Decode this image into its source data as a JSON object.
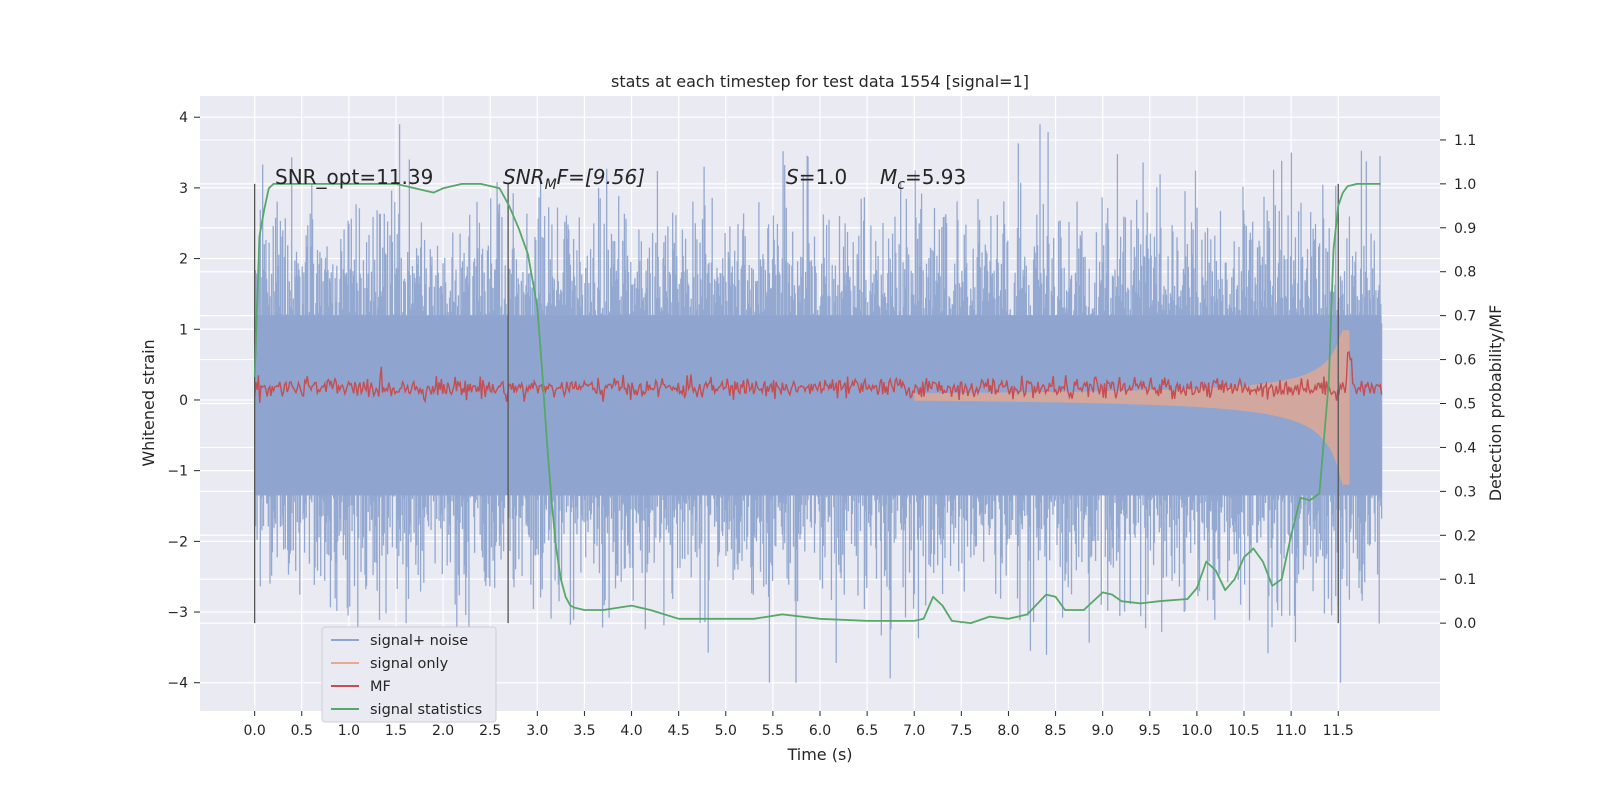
{
  "chart_data": {
    "type": "line",
    "title": "stats at each timestep for test data 1554 [signal=1]",
    "xlabel": "Time (s)",
    "ylabel": "Whitened strain",
    "ylabel_right": "Detection probability/MF",
    "xlim": [
      -0.58,
      12.58
    ],
    "ylim": [
      -4.4,
      4.3
    ],
    "ylim_right": [
      -0.2,
      1.2
    ],
    "x_ticks": [
      "0.0",
      "0.5",
      "1.0",
      "1.5",
      "2.0",
      "2.5",
      "3.0",
      "3.5",
      "4.0",
      "4.5",
      "5.0",
      "5.5",
      "6.0",
      "6.5",
      "7.0",
      "7.5",
      "8.0",
      "8.5",
      "9.0",
      "9.5",
      "10.0",
      "10.5",
      "11.0",
      "11.5"
    ],
    "y_ticks": [
      "−4",
      "−3",
      "−2",
      "−1",
      "0",
      "1",
      "2",
      "3",
      "4"
    ],
    "y_right_ticks": [
      "0.0",
      "0.1",
      "0.2",
      "0.3",
      "0.4",
      "0.5",
      "0.6",
      "0.7",
      "0.8",
      "0.9",
      "1.0",
      "1.1"
    ],
    "grid": true,
    "legend_position": "lower-left",
    "annotations": {
      "snr_opt": "SNR_opt=11.39",
      "snr_mf_prefix": "SNR",
      "snr_mf_sub": "M",
      "snr_mf_suffix": "F=[9.56]",
      "s_italic": "S",
      "s_value": "=1.0",
      "mc_italic": "M",
      "mc_sub": "c",
      "mc_value": "=5.93"
    },
    "vertical_lines_x": [
      0.0,
      2.69,
      11.5
    ],
    "series": [
      {
        "name": "signal+ noise",
        "color": "#8fa5cf"
      },
      {
        "name": "signal only",
        "color": "#e8a98d"
      },
      {
        "name": "MF",
        "color": "#c44e52"
      },
      {
        "name": "signal statistics",
        "color": "#55a868",
        "x": [
          0.0,
          0.05,
          0.1,
          0.15,
          0.2,
          0.3,
          0.5,
          1.0,
          1.5,
          1.7,
          1.9,
          2.0,
          2.2,
          2.4,
          2.6,
          2.7,
          2.8,
          2.9,
          3.0,
          3.05,
          3.1,
          3.15,
          3.2,
          3.25,
          3.3,
          3.35,
          3.4,
          3.5,
          3.7,
          4.0,
          4.2,
          4.5,
          5.0,
          5.3,
          5.6,
          6.0,
          6.5,
          7.0,
          7.1,
          7.2,
          7.3,
          7.4,
          7.6,
          7.8,
          8.0,
          8.2,
          8.4,
          8.5,
          8.6,
          8.8,
          9.0,
          9.1,
          9.2,
          9.4,
          9.6,
          9.9,
          10.0,
          10.1,
          10.2,
          10.3,
          10.4,
          10.5,
          10.6,
          10.7,
          10.8,
          10.9,
          11.0,
          11.1,
          11.2,
          11.3,
          11.4,
          11.45,
          11.5,
          11.55,
          11.6,
          11.7,
          11.8,
          11.95
        ],
        "values": [
          0.56,
          0.88,
          0.94,
          0.99,
          1.0,
          1.0,
          1.0,
          1.0,
          1.0,
          0.99,
          0.98,
          0.99,
          1.0,
          1.0,
          0.99,
          0.95,
          0.9,
          0.84,
          0.72,
          0.58,
          0.42,
          0.28,
          0.17,
          0.1,
          0.06,
          0.04,
          0.035,
          0.03,
          0.03,
          0.04,
          0.03,
          0.01,
          0.01,
          0.01,
          0.02,
          0.01,
          0.005,
          0.005,
          0.01,
          0.06,
          0.04,
          0.005,
          0.0,
          0.015,
          0.01,
          0.02,
          0.065,
          0.06,
          0.03,
          0.03,
          0.07,
          0.065,
          0.05,
          0.045,
          0.05,
          0.055,
          0.08,
          0.14,
          0.12,
          0.075,
          0.1,
          0.15,
          0.17,
          0.14,
          0.085,
          0.1,
          0.2,
          0.285,
          0.28,
          0.295,
          0.55,
          0.85,
          0.95,
          0.98,
          0.995,
          1.0,
          1.0,
          1.0
        ]
      }
    ]
  }
}
